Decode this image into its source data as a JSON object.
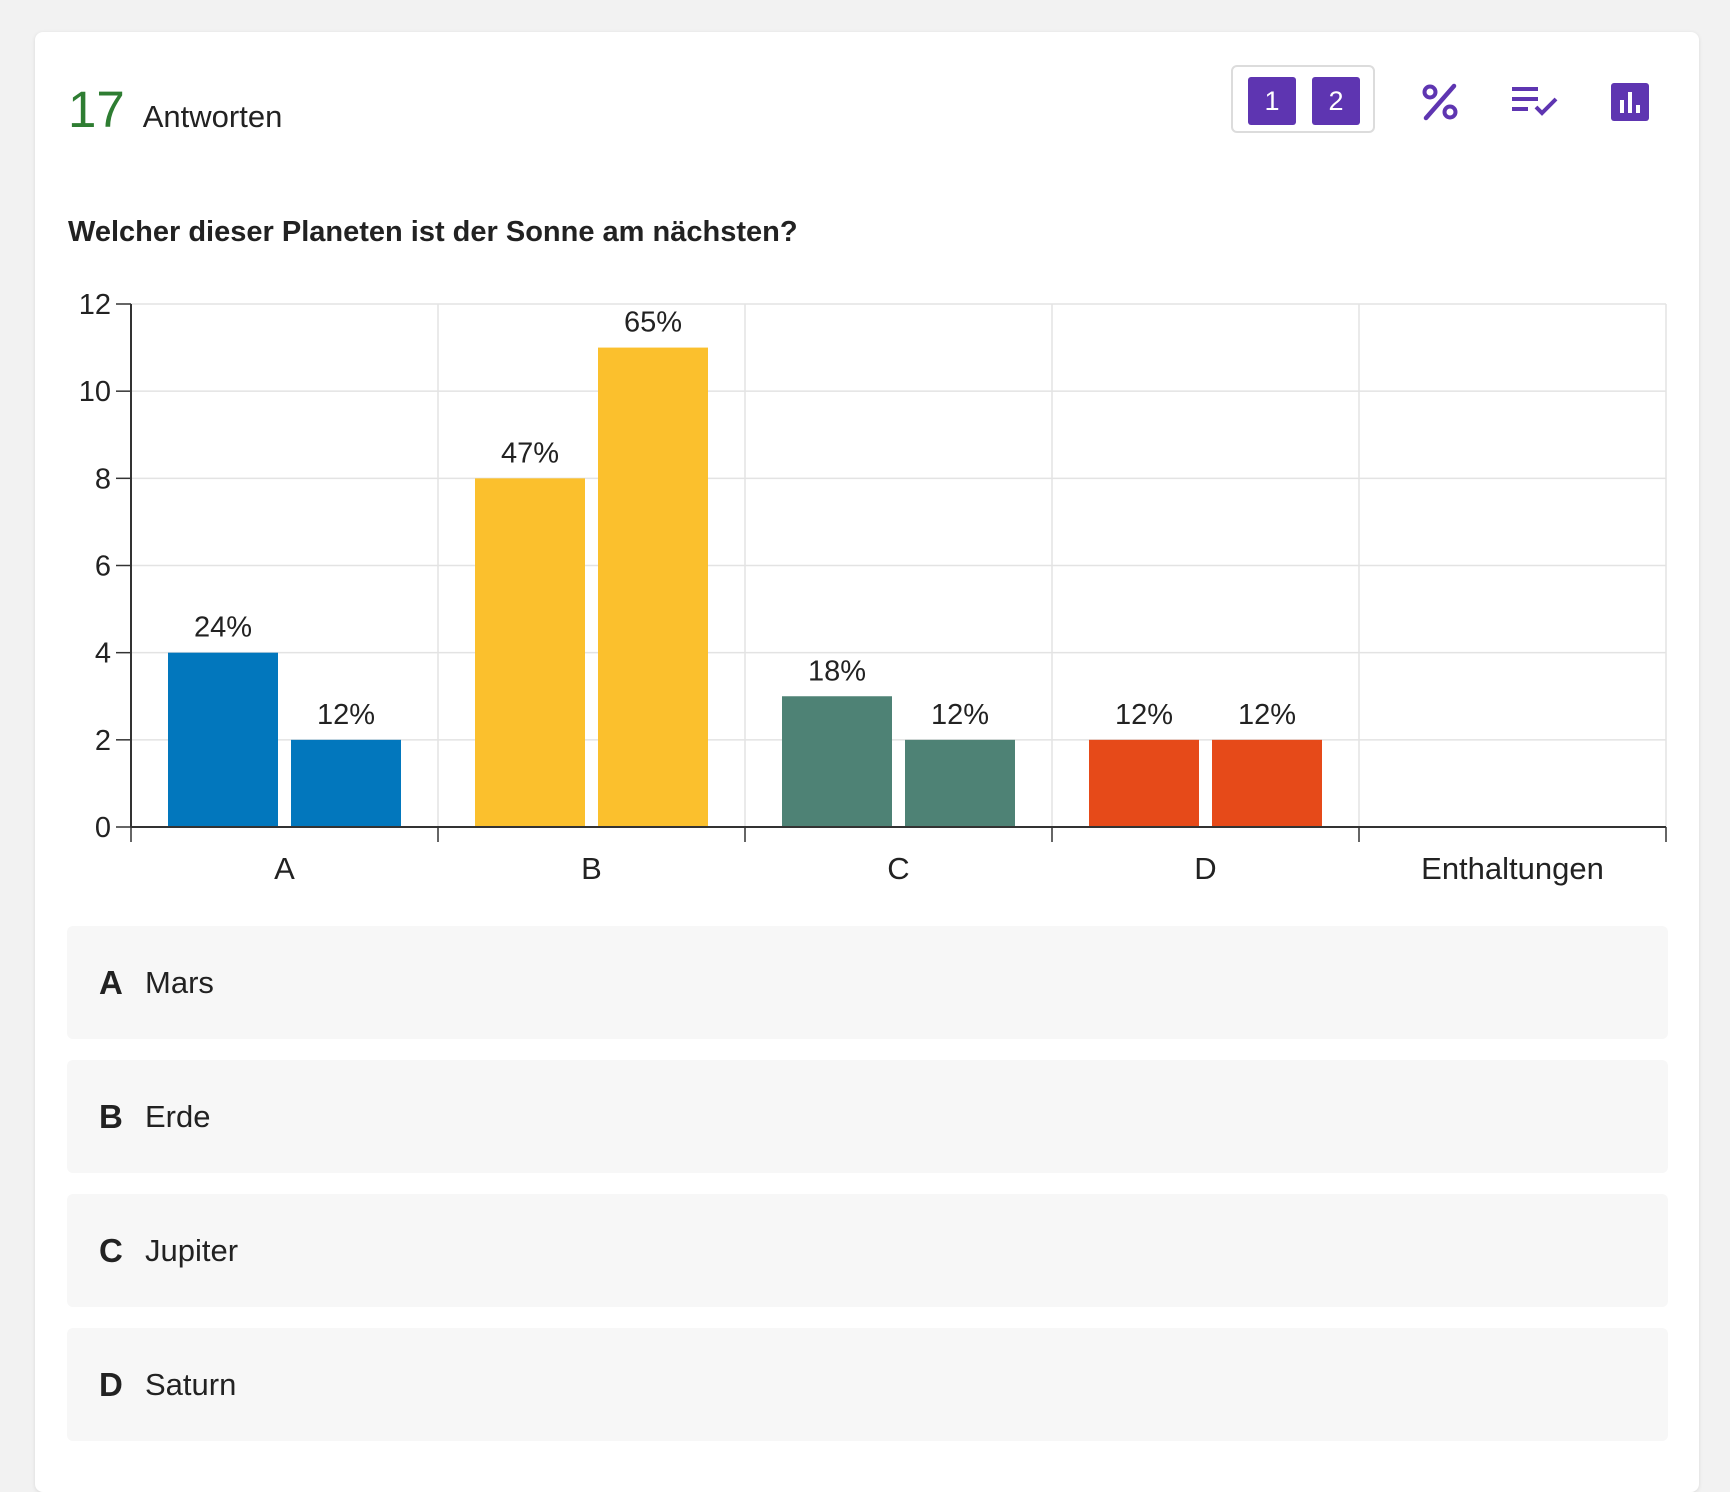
{
  "header": {
    "response_count": "17",
    "response_label": "Antworten"
  },
  "toolbar": {
    "round_buttons": [
      "1",
      "2"
    ],
    "icons": [
      "percent-icon",
      "checklist-icon",
      "bar-chart-icon"
    ],
    "accent_color": "#5e35b1"
  },
  "question": "Welcher dieser Planeten ist der Sonne am nächsten?",
  "chart_data": {
    "type": "bar",
    "categories": [
      "A",
      "B",
      "C",
      "D",
      "Enthaltungen"
    ],
    "series": [
      {
        "values": [
          4,
          8,
          3,
          2,
          0
        ],
        "labels": [
          "24%",
          "47%",
          "18%",
          "12%",
          ""
        ]
      },
      {
        "values": [
          2,
          11,
          2,
          2,
          0
        ],
        "labels": [
          "12%",
          "65%",
          "12%",
          "12%",
          ""
        ]
      }
    ],
    "category_colors": [
      "#0277bd",
      "#fbc02d",
      "#4e8275",
      "#e64a19",
      "#9e9e9e"
    ],
    "y_ticks": [
      "0",
      "2",
      "4",
      "6",
      "8",
      "10",
      "12"
    ],
    "ylim": [
      0,
      12
    ],
    "grid": true,
    "title": "",
    "xlabel": "",
    "ylabel": ""
  },
  "answers": [
    {
      "letter": "A",
      "text": "Mars"
    },
    {
      "letter": "B",
      "text": "Erde"
    },
    {
      "letter": "C",
      "text": "Jupiter"
    },
    {
      "letter": "D",
      "text": "Saturn"
    }
  ]
}
